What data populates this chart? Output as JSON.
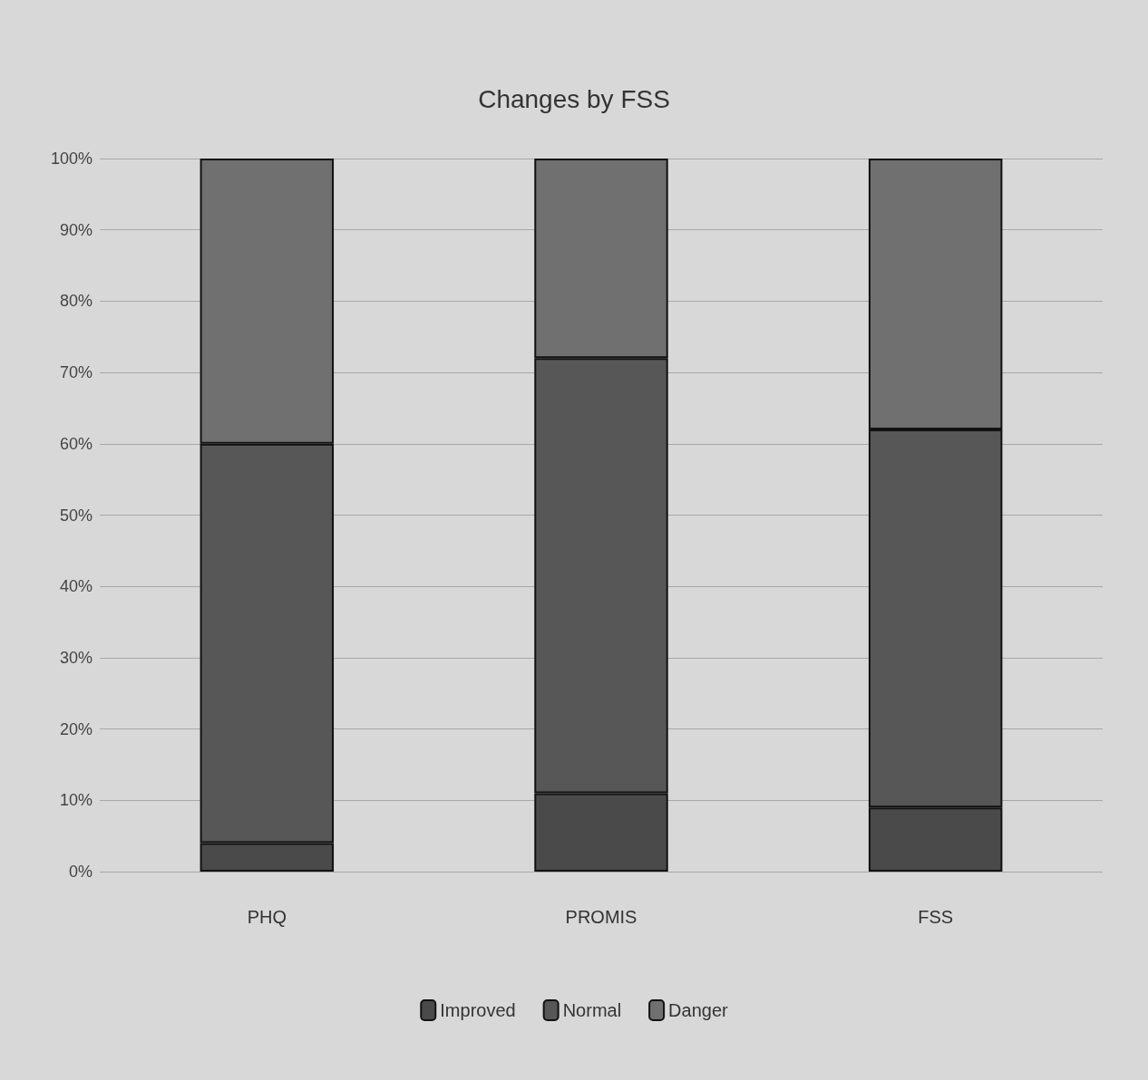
{
  "chart_data": {
    "type": "bar",
    "title": "Changes by FSS",
    "stacked": true,
    "categories": [
      "PHQ",
      "PROMIS",
      "FSS"
    ],
    "series": [
      {
        "name": "Improved",
        "color": "#4a4a4a",
        "values": [
          4,
          11,
          9
        ]
      },
      {
        "name": "Normal",
        "color": "#575757",
        "values": [
          56,
          61,
          53
        ]
      },
      {
        "name": "Danger",
        "color": "#707070",
        "values": [
          40,
          28,
          38
        ]
      }
    ],
    "ylim": [
      0,
      100
    ],
    "yticks": [
      {
        "value": 0,
        "label": "0%"
      },
      {
        "value": 10,
        "label": "10%"
      },
      {
        "value": 20,
        "label": "20%"
      },
      {
        "value": 30,
        "label": "30%"
      },
      {
        "value": 40,
        "label": "40%"
      },
      {
        "value": 50,
        "label": "50%"
      },
      {
        "value": 60,
        "label": "60%"
      },
      {
        "value": 70,
        "label": "70%"
      },
      {
        "value": 80,
        "label": "80%"
      },
      {
        "value": 90,
        "label": "90%"
      },
      {
        "value": 100,
        "label": "100%"
      }
    ],
    "grid": "y",
    "legend": "bottom"
  }
}
